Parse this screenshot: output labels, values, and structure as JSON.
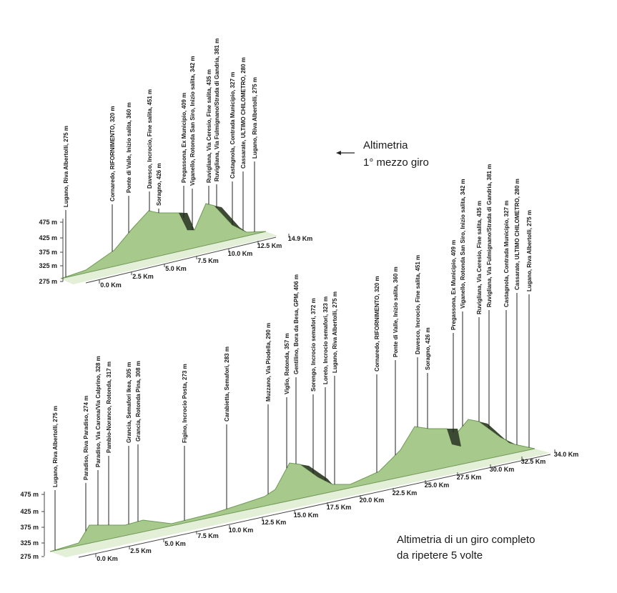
{
  "top_profile": {
    "annotation": [
      "Altimetria",
      "1° mezzo giro"
    ],
    "elevation_ticks": [
      "475 m",
      "425 m",
      "375 m",
      "325 m",
      "275 m"
    ],
    "distance_ticks": [
      "0.0 Km",
      "2.5 Km",
      "5.0 Km",
      "7.5 Km",
      "10.0 Km",
      "12.5 Km",
      "14.9 Km"
    ],
    "waypoints": [
      "Lugano, Riva Albertolli, 275 m",
      "Cornaredo, RIFORNIMENTO, 320 m",
      "Ponte di Valle, Inizio salita, 360 m",
      "Davesco, Incrocio, Fine salita, 451 m",
      "Soragno, 426 m",
      "Pregassona, Ex Municipio, 409 m",
      "Viganello, Rotonda San Siro, Inizio salita, 342 m",
      "Ruvigliana, Via Ceresio, Fine salita, 435 m",
      "Ruvigliana, Via Fulmignano/Strada di Gandria, 381 m",
      "Castagnola, Contrada Municipio, 327 m",
      "Cassarate, ULTIMO CHILOMETRO, 280 m",
      "Lugano, Riva Albertolli, 275 m"
    ]
  },
  "full_lap": {
    "annotation": [
      "Altimetria di un giro completo",
      "da ripetere 5 volte"
    ],
    "elevation_ticks": [
      "475 m",
      "425 m",
      "375 m",
      "325 m",
      "275 m"
    ],
    "distance_ticks": [
      "0.0 Km",
      "2.5 Km",
      "5.0 Km",
      "7.5 Km",
      "10.0 Km",
      "12.5 Km",
      "15.0 Km",
      "17.5 Km",
      "20.0 Km",
      "22.5 Km",
      "25.0 Km",
      "27.5 Km",
      "30.0 Km",
      "32.5 Km",
      "34.0 Km"
    ],
    "waypoints": [
      "Lugano, Riva Albertolli, 275 m",
      "Paradiso, Riva Paradiso, 274 m",
      "Paradiso, Via Carona/Via Calprino, 328 m",
      "Pambio-Noranco, Rotonda, 317 m",
      "Grancia, Semafori Ikea, 305 m",
      "Grancia, Rotonda Pina, 308 m",
      "Figino, Incrocio Posta, 273 m",
      "Carabietta, Semafori, 283 m",
      "Muzzano, Via Piodella, 290 m",
      "Viglio, Rotonda, 357 m",
      "Gentilino, Bora da Besa, GPM, 406 m",
      "Sorengo, Incrocio semafori, 372 m",
      "Loreto, Incrocio semafori, 323 m",
      "Lugano, Riva Albertolli, 275 m",
      "Cornaredo, RIFORNIMENTO, 320 m",
      "Ponte di Valle, Inizio salita, 360 m",
      "Davesco, Incrocio, Fine salita, 451 m",
      "Soragno, 426 m",
      "Pregassona, Ex Municipio, 409 m",
      "Viganello, Rotonda San Siro, Inizio salita, 342 m",
      "Ruvigliana, Via Ceresio, Fine salita, 435 m",
      "Ruvigliana, Via Fulmignano/Strada di Gandria, 381 m",
      "Castagnola, Contrada Municipio, 327 m",
      "Cassarate, ULTIMO CHILOMETRO, 280 m",
      "Lugano, Riva Albertolli, 275 m"
    ]
  }
}
